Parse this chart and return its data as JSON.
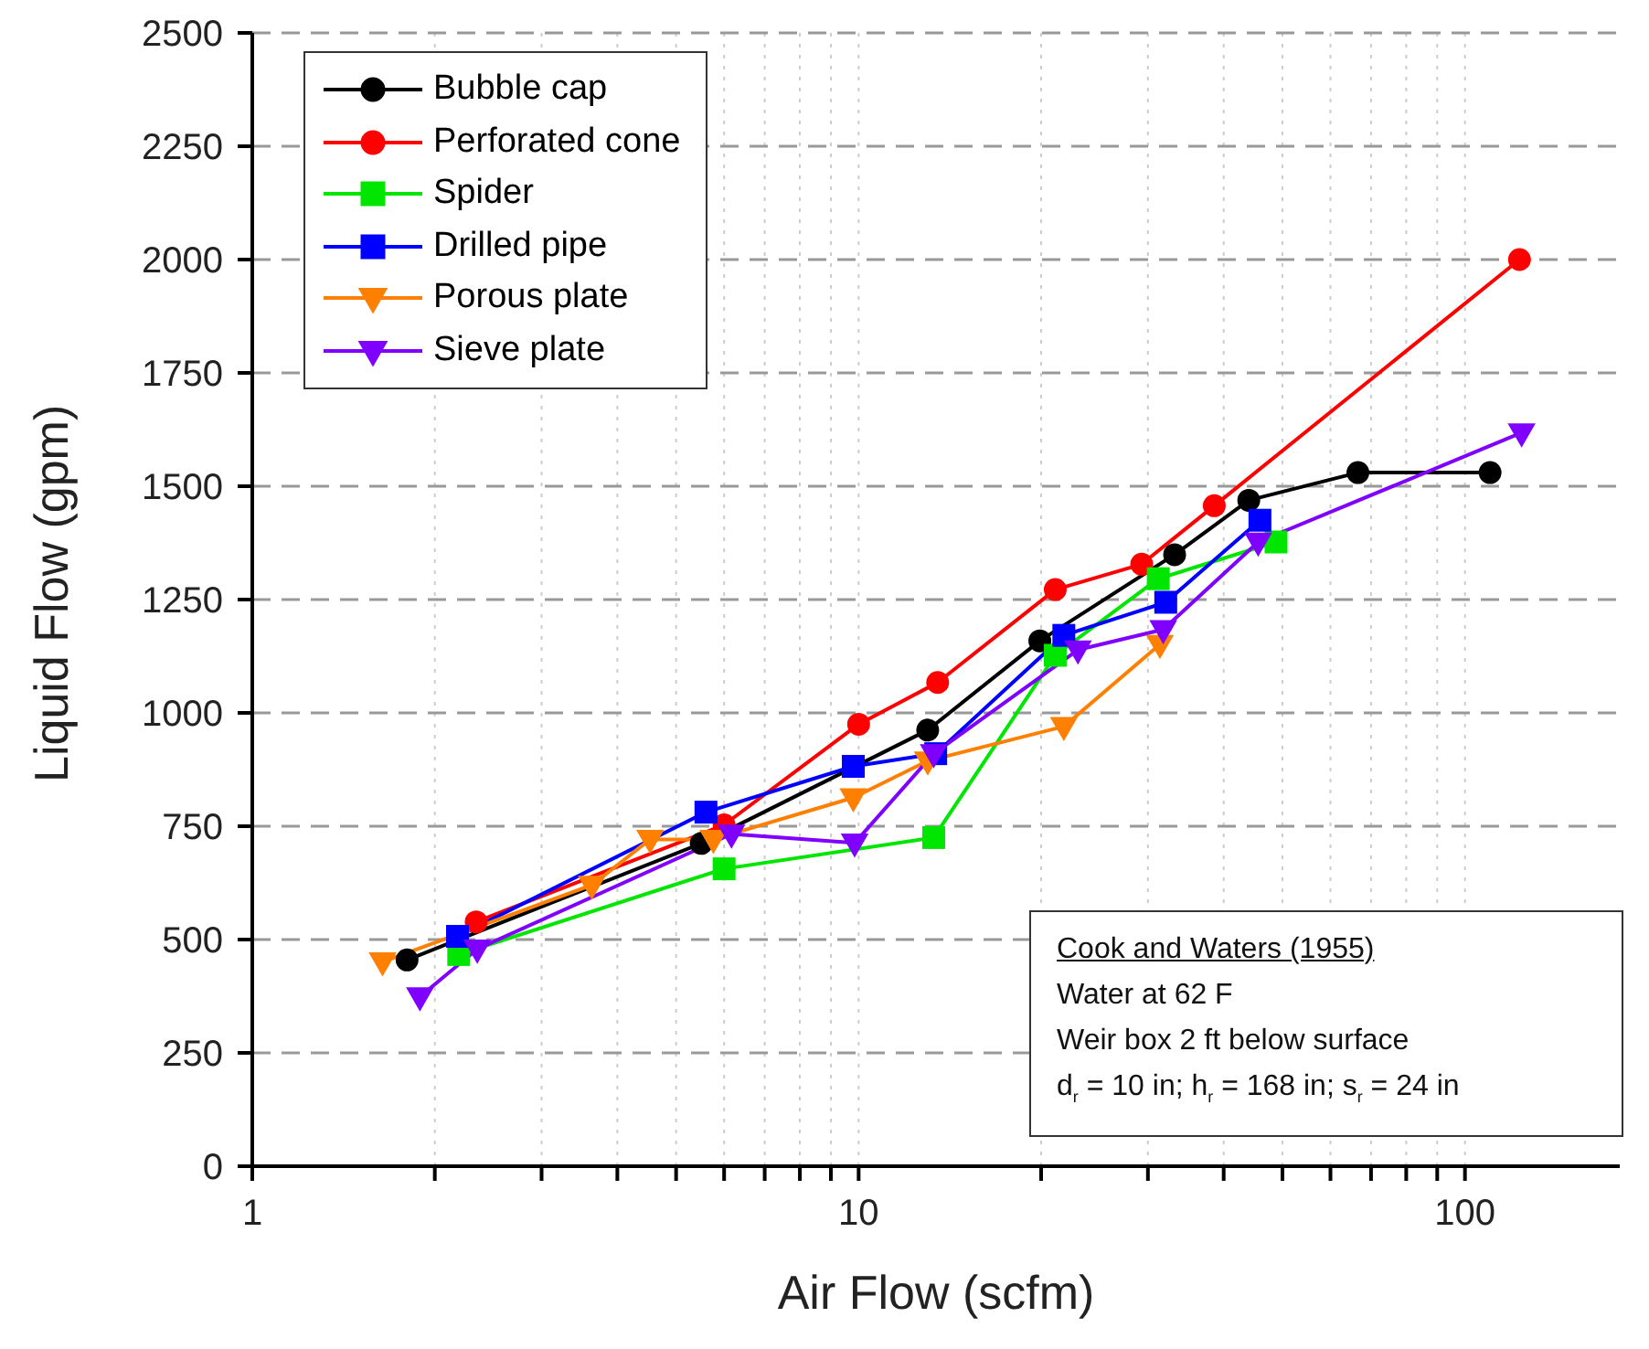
{
  "chart_data": {
    "type": "line",
    "xlabel": "Air Flow (scfm)",
    "ylabel": "Liquid Flow (gpm)",
    "log": "x",
    "grid": true,
    "legend": "top left",
    "xlim": [
      1,
      180
    ],
    "xticks": [
      1,
      {
        "value": 2,
        "label": null
      },
      {
        "value": 3,
        "label": null
      },
      {
        "value": 4,
        "label": null
      },
      {
        "value": 5,
        "label": null
      },
      {
        "value": 6,
        "label": null
      },
      {
        "value": 7,
        "label": null
      },
      {
        "value": 8,
        "label": null
      },
      {
        "value": 9,
        "label": null
      },
      10,
      {
        "value": 20,
        "label": null
      },
      {
        "value": 30,
        "label": null
      },
      {
        "value": 40,
        "label": null
      },
      {
        "value": 50,
        "label": null
      },
      {
        "value": 60,
        "label": null
      },
      {
        "value": 70,
        "label": null
      },
      {
        "value": 80,
        "label": null
      },
      {
        "value": 90,
        "label": null
      },
      100
    ],
    "ylim": [
      0,
      2500
    ],
    "yticks": [
      0,
      250,
      500,
      750,
      1000,
      1250,
      1500,
      1750,
      2000,
      2250,
      2500
    ],
    "series": [
      {
        "name": "Bubble cap",
        "color": "#000000",
        "marker": "circle",
        "x": [
          1.8,
          5.5,
          13,
          19.9,
          33.2,
          44,
          66.6,
          110
        ],
        "values": [
          455,
          712,
          962,
          1159,
          1349,
          1469,
          1530,
          1530
        ]
      },
      {
        "name": "Perforated cone",
        "color": "#ff0000",
        "marker": "circle",
        "x": [
          2.34,
          6,
          10,
          13.5,
          21.1,
          29.3,
          38.6,
          123
        ],
        "values": [
          539,
          753,
          975,
          1067,
          1272,
          1328,
          1457,
          2000
        ]
      },
      {
        "name": "Spider",
        "color": "#00e600",
        "marker": "square",
        "x": [
          2.19,
          6,
          13.3,
          21.1,
          31.2,
          48.8
        ],
        "values": [
          467,
          656,
          725,
          1127,
          1296,
          1377
        ]
      },
      {
        "name": "Drilled pipe",
        "color": "#0000ff",
        "marker": "square",
        "x": [
          2.18,
          5.6,
          9.8,
          13.4,
          21.8,
          32.1,
          45.9
        ],
        "values": [
          507,
          781,
          882,
          910,
          1171,
          1244,
          1425
        ]
      },
      {
        "name": "Porous plate",
        "color": "#ff8000",
        "marker": "triangle",
        "x": [
          1.64,
          3.63,
          4.53,
          5.76,
          9.8,
          13,
          21.8,
          31.4
        ],
        "values": [
          451,
          620,
          721,
          721,
          813,
          894,
          970,
          1151
        ]
      },
      {
        "name": "Sieve plate",
        "color": "#8000ff",
        "marker": "triangle",
        "x": [
          1.89,
          2.35,
          6.17,
          9.85,
          13.3,
          23,
          31.8,
          45.6,
          124
        ],
        "values": [
          374,
          479,
          733,
          713,
          910,
          1139,
          1184,
          1377,
          1618
        ]
      }
    ],
    "annotations": [
      "Cook and Waters (1955)",
      "Water at 62 F",
      "Weir box 2 ft below surface",
      "d$_{r}$ = 10 in; h$_{r}$ = 168 in; s$_{r}$ = 24 in"
    ]
  }
}
